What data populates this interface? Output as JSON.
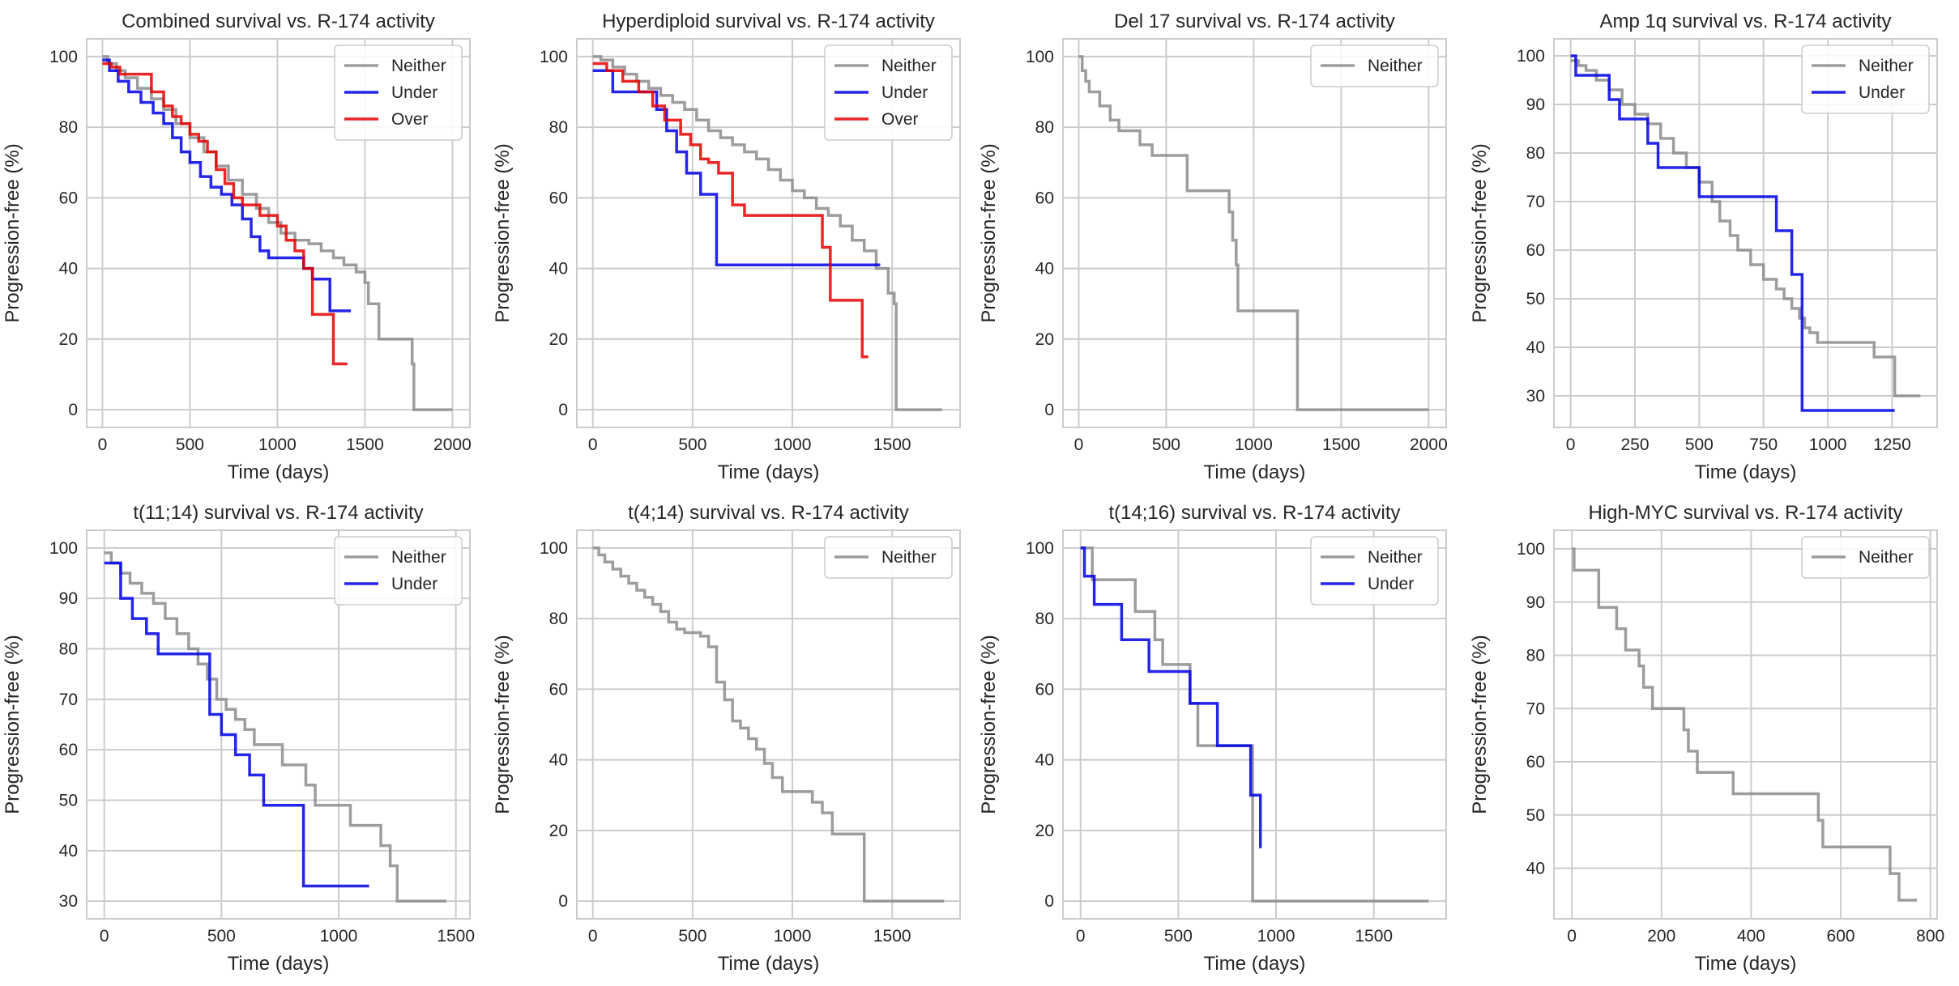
{
  "colors": {
    "Neither": "#8c8c8c",
    "Under": "#0000e6",
    "Over": "#e60000",
    "grid": "#cccccc",
    "frame": "#cccccc"
  },
  "chart_data": [
    {
      "type": "line",
      "title": "Combined survival vs. R-174 activity",
      "xlabel": "Time (days)",
      "ylabel": "Progression-free (%)",
      "xlim": [
        -90,
        2100
      ],
      "ylim": [
        -5,
        105
      ],
      "xticks": [
        0,
        500,
        1000,
        1500,
        2000
      ],
      "yticks": [
        0,
        20,
        40,
        60,
        80,
        100
      ],
      "grid": true,
      "legend": "top-right",
      "series": [
        {
          "name": "Neither",
          "x": [
            0,
            30,
            80,
            130,
            200,
            280,
            350,
            420,
            500,
            580,
            650,
            720,
            800,
            880,
            950,
            1020,
            1100,
            1180,
            1250,
            1320,
            1380,
            1450,
            1500,
            1520,
            1580,
            1640,
            1700,
            1760,
            1770,
            1780,
            1850,
            1950,
            2000
          ],
          "y": [
            100,
            98,
            96,
            94,
            91,
            88,
            85,
            81,
            77,
            73,
            69,
            65,
            61,
            57,
            53,
            50,
            48,
            47,
            45,
            43,
            41,
            39,
            36,
            30,
            20,
            20,
            20,
            20,
            13,
            0,
            0,
            0,
            0
          ]
        },
        {
          "name": "Under",
          "x": [
            0,
            40,
            90,
            150,
            220,
            290,
            350,
            400,
            450,
            500,
            560,
            620,
            680,
            740,
            800,
            850,
            900,
            950,
            1000,
            1050,
            1100,
            1150,
            1200,
            1250,
            1300,
            1350,
            1420
          ],
          "y": [
            99,
            96,
            93,
            90,
            87,
            84,
            81,
            77,
            73,
            70,
            66,
            63,
            61,
            58,
            54,
            49,
            45,
            43,
            43,
            43,
            43,
            40,
            37,
            37,
            28,
            28,
            28
          ]
        },
        {
          "name": "Over",
          "x": [
            0,
            50,
            100,
            200,
            280,
            350,
            400,
            450,
            500,
            550,
            600,
            650,
            700,
            750,
            800,
            900,
            1000,
            1050,
            1100,
            1150,
            1200,
            1250,
            1300,
            1320,
            1400
          ],
          "y": [
            98,
            97,
            95,
            95,
            90,
            86,
            83,
            81,
            78,
            76,
            73,
            68,
            64,
            60,
            58,
            55,
            52,
            48,
            45,
            40,
            27,
            27,
            27,
            13,
            13
          ]
        }
      ]
    },
    {
      "type": "line",
      "title": "Hyperdiploid survival vs. R-174 activity",
      "xlabel": "Time (days)",
      "ylabel": "Progression-free (%)",
      "xlim": [
        -80,
        1840
      ],
      "ylim": [
        -5,
        105
      ],
      "xticks": [
        0,
        500,
        1000,
        1500
      ],
      "yticks": [
        0,
        20,
        40,
        60,
        80,
        100
      ],
      "grid": true,
      "legend": "top-right",
      "series": [
        {
          "name": "Neither",
          "x": [
            0,
            40,
            100,
            160,
            220,
            280,
            340,
            400,
            460,
            520,
            580,
            640,
            700,
            760,
            820,
            880,
            940,
            1000,
            1060,
            1120,
            1180,
            1240,
            1300,
            1360,
            1420,
            1480,
            1510,
            1520,
            1750
          ],
          "y": [
            100,
            99,
            97,
            95,
            93,
            91,
            89,
            87,
            85,
            82,
            79,
            77,
            75,
            73,
            71,
            68,
            65,
            62,
            60,
            57,
            55,
            52,
            48,
            45,
            40,
            33,
            30,
            0,
            0
          ]
        },
        {
          "name": "Under",
          "x": [
            0,
            100,
            270,
            320,
            370,
            420,
            470,
            540,
            600,
            620,
            700,
            800,
            900,
            1000,
            1100,
            1200,
            1300,
            1440
          ],
          "y": [
            96,
            90,
            90,
            85,
            79,
            73,
            67,
            61,
            61,
            41,
            41,
            41,
            41,
            41,
            41,
            41,
            41,
            41
          ]
        },
        {
          "name": "Over",
          "x": [
            0,
            70,
            150,
            230,
            300,
            360,
            440,
            490,
            540,
            580,
            630,
            700,
            760,
            820,
            880,
            950,
            1000,
            1100,
            1150,
            1190,
            1240,
            1300,
            1350,
            1380
          ],
          "y": [
            98,
            96,
            93,
            90,
            86,
            82,
            78,
            75,
            71,
            70,
            67,
            58,
            55,
            55,
            55,
            55,
            55,
            55,
            46,
            31,
            31,
            31,
            15,
            15
          ]
        }
      ]
    },
    {
      "type": "line",
      "title": "Del 17 survival vs. R-174 activity",
      "xlabel": "Time (days)",
      "ylabel": "Progression-free (%)",
      "xlim": [
        -90,
        2100
      ],
      "ylim": [
        -5,
        105
      ],
      "xticks": [
        0,
        500,
        1000,
        1500,
        2000
      ],
      "yticks": [
        0,
        20,
        40,
        60,
        80,
        100
      ],
      "grid": true,
      "legend": "top-right",
      "series": [
        {
          "name": "Neither",
          "x": [
            0,
            20,
            40,
            60,
            120,
            180,
            230,
            300,
            350,
            420,
            500,
            580,
            620,
            800,
            860,
            880,
            900,
            910,
            1000,
            1100,
            1220,
            1250,
            1500,
            1800,
            2000
          ],
          "y": [
            100,
            96,
            93,
            90,
            86,
            82,
            79,
            79,
            75,
            72,
            72,
            72,
            62,
            62,
            56,
            48,
            41,
            28,
            28,
            28,
            28,
            0,
            0,
            0,
            0
          ]
        }
      ]
    },
    {
      "type": "line",
      "title": "Amp 1q survival vs. R-174 activity",
      "xlabel": "Time (days)",
      "ylabel": "Progression-free (%)",
      "xlim": [
        -65,
        1425
      ],
      "ylim": [
        23.5,
        103.5
      ],
      "xticks": [
        0,
        250,
        500,
        750,
        1000,
        1250
      ],
      "yticks": [
        30,
        40,
        50,
        60,
        70,
        80,
        90,
        100
      ],
      "grid": true,
      "legend": "top-right",
      "series": [
        {
          "name": "Neither",
          "x": [
            0,
            30,
            60,
            100,
            150,
            200,
            250,
            300,
            350,
            400,
            450,
            500,
            550,
            580,
            620,
            650,
            700,
            750,
            800,
            830,
            860,
            890,
            910,
            930,
            960,
            1000,
            1100,
            1180,
            1220,
            1260,
            1300,
            1360
          ],
          "y": [
            99,
            98,
            97,
            95,
            93,
            90,
            88,
            86,
            83,
            80,
            77,
            74,
            70,
            66,
            63,
            60,
            57,
            54,
            52,
            50,
            48,
            46,
            44,
            43,
            41,
            41,
            41,
            38,
            38,
            30,
            30,
            30
          ]
        },
        {
          "name": "Under",
          "x": [
            0,
            20,
            50,
            100,
            150,
            190,
            230,
            300,
            340,
            380,
            420,
            460,
            500,
            550,
            600,
            650,
            700,
            750,
            800,
            830,
            860,
            900,
            930,
            1000,
            1100,
            1260
          ],
          "y": [
            100,
            96,
            96,
            96,
            91,
            87,
            87,
            82,
            77,
            77,
            77,
            77,
            71,
            71,
            71,
            71,
            71,
            71,
            64,
            64,
            55,
            27,
            27,
            27,
            27,
            27
          ]
        }
      ]
    },
    {
      "type": "line",
      "title": "t(11;14) survival vs. R-174 activity",
      "xlabel": "Time (days)",
      "ylabel": "Progression-free (%)",
      "xlim": [
        -75,
        1560
      ],
      "ylim": [
        26.5,
        103.5
      ],
      "xticks": [
        0,
        500,
        1000,
        1500
      ],
      "yticks": [
        30,
        40,
        50,
        60,
        70,
        80,
        90,
        100
      ],
      "grid": true,
      "legend": "top-right",
      "series": [
        {
          "name": "Neither",
          "x": [
            0,
            30,
            70,
            110,
            160,
            210,
            260,
            310,
            360,
            400,
            440,
            480,
            520,
            560,
            600,
            640,
            700,
            760,
            820,
            860,
            900,
            950,
            1000,
            1050,
            1090,
            1140,
            1180,
            1220,
            1250,
            1300,
            1380,
            1460
          ],
          "y": [
            99,
            97,
            95,
            93,
            91,
            89,
            86,
            83,
            80,
            77,
            74,
            70,
            68,
            66,
            64,
            61,
            61,
            57,
            57,
            53,
            49,
            49,
            49,
            45,
            45,
            45,
            41,
            37,
            30,
            30,
            30,
            30
          ]
        },
        {
          "name": "Under",
          "x": [
            0,
            20,
            70,
            120,
            180,
            230,
            280,
            330,
            380,
            440,
            450,
            500,
            560,
            620,
            680,
            740,
            800,
            850,
            900,
            1000,
            1130
          ],
          "y": [
            97,
            97,
            90,
            86,
            83,
            79,
            79,
            79,
            79,
            79,
            67,
            63,
            59,
            55,
            49,
            49,
            49,
            33,
            33,
            33,
            33
          ]
        }
      ]
    },
    {
      "type": "line",
      "title": "t(4;14) survival vs. R-174 activity",
      "xlabel": "Time (days)",
      "ylabel": "Progression-free (%)",
      "xlim": [
        -80,
        1840
      ],
      "ylim": [
        -5,
        105
      ],
      "xticks": [
        0,
        500,
        1000,
        1500
      ],
      "yticks": [
        0,
        20,
        40,
        60,
        80,
        100
      ],
      "grid": true,
      "legend": "top-right",
      "series": [
        {
          "name": "Neither",
          "x": [
            0,
            30,
            60,
            100,
            140,
            180,
            220,
            260,
            300,
            340,
            380,
            420,
            460,
            500,
            540,
            580,
            620,
            660,
            700,
            740,
            780,
            820,
            860,
            900,
            950,
            1000,
            1050,
            1100,
            1150,
            1200,
            1260,
            1300,
            1350,
            1360,
            1500,
            1760
          ],
          "y": [
            100,
            98,
            96,
            94,
            92,
            90,
            88,
            86,
            84,
            82,
            79,
            77,
            76,
            76,
            75,
            72,
            62,
            57,
            51,
            49,
            46,
            43,
            39,
            35,
            31,
            31,
            31,
            28,
            25,
            19,
            19,
            19,
            19,
            0,
            0,
            0
          ]
        }
      ]
    },
    {
      "type": "line",
      "title": "t(14;16) survival vs. R-174 activity",
      "xlabel": "Time (days)",
      "ylabel": "Progression-free (%)",
      "xlim": [
        -90,
        1870
      ],
      "ylim": [
        -5,
        105
      ],
      "xticks": [
        0,
        500,
        1000,
        1500
      ],
      "yticks": [
        0,
        20,
        40,
        60,
        80,
        100
      ],
      "grid": true,
      "legend": "top-right",
      "series": [
        {
          "name": "Neither",
          "x": [
            0,
            60,
            100,
            200,
            280,
            320,
            380,
            420,
            500,
            560,
            600,
            650,
            700,
            800,
            860,
            880,
            900,
            1100,
            1400,
            1780
          ],
          "y": [
            100,
            91,
            91,
            91,
            82,
            82,
            74,
            67,
            67,
            56,
            44,
            44,
            44,
            44,
            44,
            0,
            0,
            0,
            0,
            0
          ]
        },
        {
          "name": "Under",
          "x": [
            0,
            20,
            70,
            140,
            210,
            280,
            350,
            400,
            460,
            560,
            620,
            700,
            760,
            820,
            870,
            900,
            920
          ],
          "y": [
            100,
            92,
            84,
            84,
            74,
            74,
            65,
            65,
            65,
            56,
            56,
            44,
            44,
            44,
            30,
            30,
            15
          ]
        }
      ]
    },
    {
      "type": "line",
      "title": "High-MYC survival vs. R-174 activity",
      "xlabel": "Time (days)",
      "ylabel": "Progression-free (%)",
      "xlim": [
        -40,
        815
      ],
      "ylim": [
        30.5,
        103.5
      ],
      "xticks": [
        0,
        200,
        400,
        600,
        800
      ],
      "yticks": [
        40,
        50,
        60,
        70,
        80,
        90,
        100
      ],
      "grid": true,
      "legend": "top-right",
      "series": [
        {
          "name": "Neither",
          "x": [
            0,
            5,
            60,
            100,
            120,
            150,
            160,
            180,
            230,
            250,
            260,
            280,
            300,
            360,
            400,
            450,
            500,
            550,
            560,
            650,
            710,
            730,
            770
          ],
          "y": [
            100,
            96,
            89,
            85,
            81,
            78,
            74,
            70,
            70,
            66,
            62,
            58,
            58,
            54,
            54,
            54,
            54,
            49,
            44,
            44,
            39,
            34,
            34
          ]
        }
      ]
    }
  ]
}
